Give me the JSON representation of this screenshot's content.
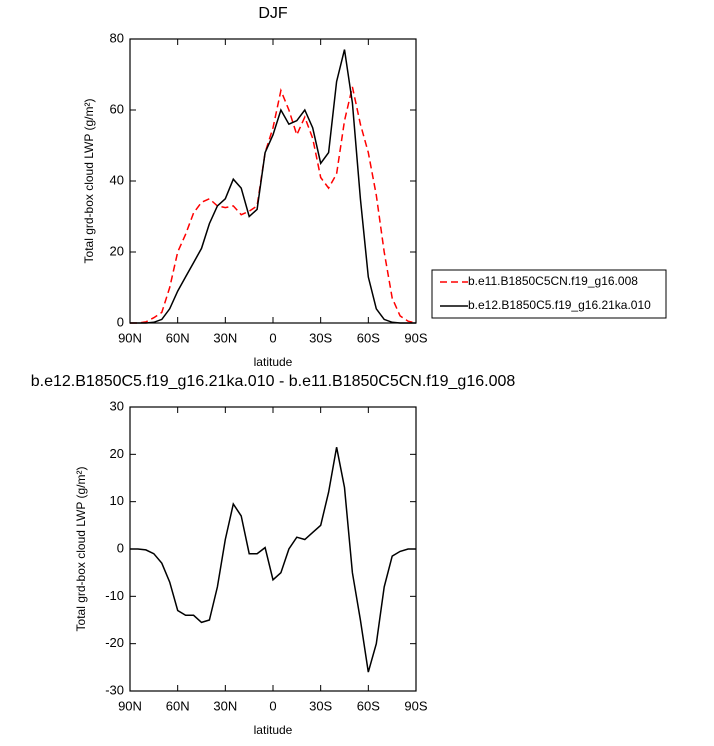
{
  "chart_data": [
    {
      "type": "line",
      "title": "DJF",
      "xlabel": "latitude",
      "ylabel": "Total grd-box cloud LWP (g/m²)",
      "x": [
        90,
        85,
        80,
        75,
        70,
        65,
        60,
        55,
        50,
        45,
        40,
        35,
        30,
        25,
        20,
        15,
        10,
        5,
        0,
        -5,
        -10,
        -15,
        -20,
        -25,
        -30,
        -35,
        -40,
        -45,
        -50,
        -55,
        -60,
        -65,
        -70,
        -75,
        -80,
        -85,
        -90
      ],
      "series": [
        {
          "name": "b.e11.B1850C5CN.f19_g16.008",
          "color": "#ff0000",
          "line_style": "dashed",
          "values": [
            0,
            0,
            0.3,
            1.5,
            3,
            10,
            20,
            25,
            31,
            34,
            35,
            33,
            32.5,
            33,
            30.5,
            31.5,
            33,
            48,
            55,
            65.5,
            60,
            53,
            58,
            52,
            41,
            38,
            42,
            57,
            66.5,
            56,
            48,
            36,
            20,
            7,
            2,
            0.5,
            0
          ]
        },
        {
          "name": "b.e12.B1850C5.f19_g16.21ka.010",
          "color": "#000000",
          "line_style": "solid",
          "values": [
            0,
            0,
            0,
            0.2,
            1,
            4,
            9,
            13,
            17,
            21,
            28,
            33,
            35,
            40.5,
            38,
            30,
            32,
            48,
            53,
            60,
            56,
            57,
            60,
            55,
            45,
            48,
            68,
            77,
            62,
            35,
            13,
            4,
            1,
            0.2,
            0,
            0,
            0
          ]
        }
      ],
      "xlim": [
        90,
        -90
      ],
      "ylim": [
        0,
        80
      ],
      "xticks": [
        {
          "value": 90,
          "label": "90N"
        },
        {
          "value": 60,
          "label": "60N"
        },
        {
          "value": 30,
          "label": "30N"
        },
        0,
        {
          "value": -30,
          "label": "30S"
        },
        {
          "value": -60,
          "label": "60S"
        },
        {
          "value": -90,
          "label": "90S"
        }
      ],
      "yticks": [
        0,
        20,
        40,
        60,
        80
      ],
      "legend": "right",
      "grid": false
    },
    {
      "type": "line",
      "title": "b.e12.B1850C5.f19_g16.21ka.010 - b.e11.B1850C5CN.f19_g16.008",
      "xlabel": "latitude",
      "ylabel": "Total grd-box cloud LWP (g/m²)",
      "x": [
        90,
        85,
        80,
        75,
        70,
        65,
        60,
        55,
        50,
        45,
        40,
        35,
        30,
        25,
        20,
        15,
        10,
        5,
        0,
        -5,
        -10,
        -15,
        -20,
        -25,
        -30,
        -35,
        -40,
        -45,
        -50,
        -55,
        -60,
        -65,
        -70,
        -75,
        -80,
        -85,
        -90
      ],
      "values": [
        0,
        0,
        -0.2,
        -1,
        -3,
        -7,
        -13,
        -14,
        -14,
        -15.5,
        -15,
        -8,
        2,
        9.5,
        7,
        -1,
        -1,
        0.3,
        -6.5,
        -5,
        0,
        2.5,
        2,
        3.5,
        5,
        12,
        21.5,
        13,
        -5,
        -15,
        -26,
        -20,
        -8,
        -1.5,
        -0.5,
        0,
        0
      ],
      "color": "#000000",
      "line_style": "solid",
      "xlim": [
        90,
        -90
      ],
      "ylim": [
        -30,
        30
      ],
      "xticks": [
        {
          "value": 90,
          "label": "90N"
        },
        {
          "value": 60,
          "label": "60N"
        },
        {
          "value": 30,
          "label": "30N"
        },
        0,
        {
          "value": -30,
          "label": "30S"
        },
        {
          "value": -60,
          "label": "60S"
        },
        {
          "value": -90,
          "label": "90S"
        }
      ],
      "yticks": [
        -30,
        -20,
        -10,
        0,
        10,
        20,
        30
      ],
      "grid": false
    }
  ]
}
